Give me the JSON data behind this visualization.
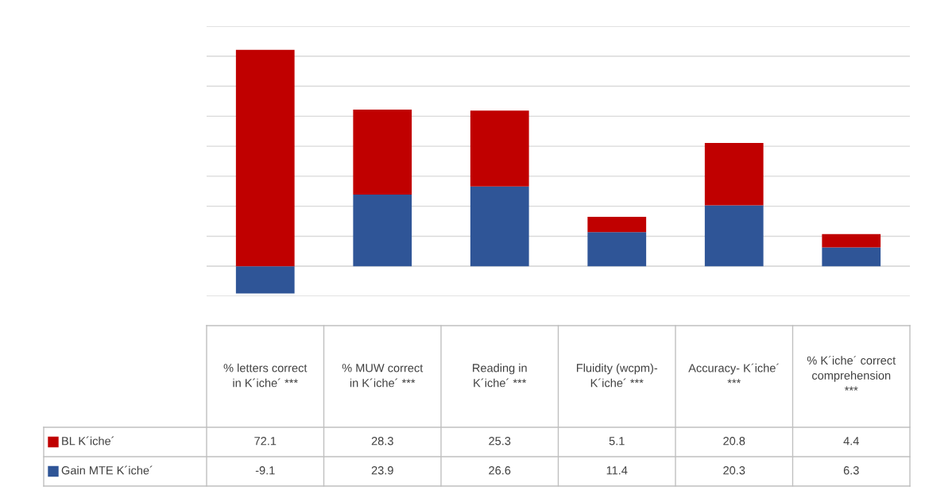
{
  "chart_data": {
    "type": "bar",
    "stacked": true,
    "categories": [
      "% letters correct in K´iche´ ***",
      "% MUW correct in K´iche´ ***",
      "Reading in K´iche´ ***",
      "Fluidity (wcpm)- K´iche´ ***",
      "Accuracy- K´iche´ ***",
      "% K´iche´ correct comprehension ***"
    ],
    "series": [
      {
        "name": "Gain MTE K´iche´",
        "color": "#2f5597",
        "values": [
          -9.1,
          23.9,
          26.6,
          11.4,
          20.3,
          6.3
        ]
      },
      {
        "name": "BL K´iche´",
        "color": "#c00000",
        "values": [
          72.1,
          28.3,
          25.3,
          5.1,
          20.8,
          4.4
        ]
      }
    ],
    "ylim": [
      -10,
      80
    ],
    "yticks": [
      {
        "value": -10,
        "label": null
      },
      {
        "value": 0,
        "label": null
      },
      {
        "value": 10,
        "label": null
      },
      {
        "value": 20,
        "label": null
      },
      {
        "value": 30,
        "label": null
      },
      {
        "value": 40,
        "label": null
      },
      {
        "value": 50,
        "label": null
      },
      {
        "value": 60,
        "label": null
      },
      {
        "value": 70,
        "label": null
      },
      {
        "value": 80,
        "label": null
      }
    ],
    "grid": "y",
    "tick_labels": "x",
    "data_labels": true,
    "legend": "bottom"
  }
}
